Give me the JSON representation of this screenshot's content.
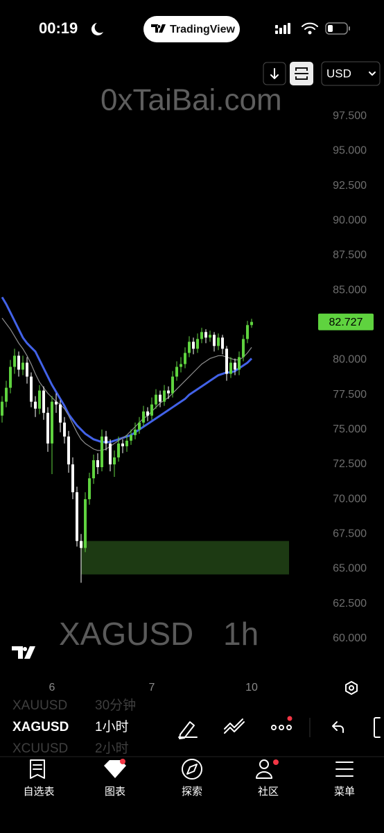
{
  "status_bar": {
    "time": "00:19",
    "app": "TradingView"
  },
  "toolbar": {
    "currency": "USD"
  },
  "watermark": {
    "site": "0xTaiBai.com",
    "symbol": "XAGUSD",
    "interval": "1h"
  },
  "chart_data": {
    "type": "candlestick",
    "categories": [
      null,
      null,
      null,
      null,
      null,
      null,
      null,
      null,
      null,
      null,
      null,
      null,
      "6",
      null,
      null,
      null,
      null,
      null,
      null,
      null,
      null,
      null,
      null,
      null,
      null,
      null,
      null,
      null,
      null,
      null,
      null,
      null,
      null,
      null,
      null,
      null,
      "7",
      null,
      null,
      null,
      null,
      null,
      null,
      null,
      null,
      null,
      null,
      null,
      null,
      null,
      null,
      null,
      null,
      null,
      null,
      null,
      null,
      null,
      null,
      null,
      "10"
    ],
    "open": [
      76.0,
      77.0,
      78.0,
      79.5,
      80.3,
      79.3,
      79.8,
      78.8,
      77.0,
      76.5,
      77.8,
      76.2,
      74.0,
      77.0,
      76.8,
      75.5,
      74.5,
      72.5,
      70.5,
      67.0,
      66.5,
      70.0,
      71.5,
      72.8,
      72.3,
      74.5,
      74.0,
      72.5,
      73.0,
      74.0,
      73.8,
      74.2,
      74.6,
      75.0,
      75.5,
      76.3,
      76.0,
      76.8,
      77.5,
      77.0,
      77.8,
      77.6,
      78.8,
      79.5,
      79.7,
      80.5,
      81.3,
      80.8,
      81.5,
      82.0,
      81.6,
      81.8,
      81.0,
      81.6,
      80.8,
      79.0,
      79.8,
      79.3,
      80.2,
      81.5,
      82.5
    ],
    "high": [
      77.4,
      78.5,
      80.0,
      80.8,
      80.6,
      80.3,
      80.2,
      79.1,
      77.4,
      78.2,
      78.1,
      76.6,
      77.4,
      77.6,
      77.1,
      75.9,
      74.9,
      73.0,
      70.9,
      67.5,
      70.5,
      71.9,
      73.2,
      73.3,
      75.0,
      74.9,
      74.3,
      73.5,
      74.5,
      74.3,
      74.6,
      75.0,
      75.5,
      75.9,
      76.7,
      76.6,
      77.3,
      77.9,
      77.8,
      78.2,
      78.1,
      79.2,
      79.9,
      80.2,
      80.9,
      81.7,
      81.6,
      81.9,
      82.3,
      82.2,
      82.1,
      82.0,
      81.9,
      81.8,
      81.0,
      80.2,
      80.1,
      80.6,
      81.8,
      82.8,
      82.95
    ],
    "low": [
      75.5,
      76.6,
      77.6,
      79.0,
      78.8,
      78.9,
      78.3,
      76.6,
      75.9,
      76.1,
      75.7,
      73.4,
      71.8,
      76.2,
      74.8,
      74.0,
      71.9,
      70.0,
      66.6,
      64.0,
      66.2,
      69.6,
      71.1,
      71.8,
      72.0,
      73.5,
      72.0,
      71.6,
      72.7,
      73.3,
      73.4,
      73.9,
      74.3,
      74.7,
      75.2,
      75.6,
      75.7,
      76.5,
      76.6,
      76.7,
      77.2,
      77.3,
      78.5,
      79.1,
      79.4,
      80.2,
      80.4,
      80.5,
      81.2,
      81.2,
      81.3,
      80.6,
      80.7,
      80.4,
      78.5,
      78.7,
      78.9,
      78.9,
      79.9,
      81.2,
      82.3
    ],
    "close": [
      77.0,
      78.0,
      79.5,
      80.3,
      79.3,
      79.8,
      78.8,
      77.0,
      76.5,
      77.8,
      76.2,
      74.0,
      77.0,
      76.8,
      75.5,
      74.5,
      72.5,
      70.5,
      67.0,
      66.5,
      70.0,
      71.5,
      72.8,
      72.3,
      74.5,
      74.0,
      72.5,
      73.0,
      74.0,
      73.8,
      74.2,
      74.6,
      75.0,
      75.5,
      76.3,
      76.0,
      76.8,
      77.5,
      77.0,
      77.8,
      77.6,
      78.8,
      79.5,
      79.7,
      80.5,
      81.3,
      80.8,
      81.5,
      82.0,
      81.6,
      81.8,
      81.0,
      81.6,
      80.8,
      79.0,
      79.8,
      79.3,
      80.2,
      81.5,
      82.5,
      82.727
    ],
    "up_color": "#5fd33f",
    "down_color": "#ffffff",
    "overlays": [
      {
        "color": "#4262e8",
        "values": [
          84.5,
          84.0,
          83.4,
          82.8,
          82.2,
          81.6,
          81.2,
          80.9,
          80.6,
          80.0,
          79.4,
          78.8,
          78.2,
          77.7,
          77.2,
          76.7,
          76.1,
          75.7,
          75.3,
          75.0,
          74.7,
          74.5,
          74.3,
          74.2,
          74.1,
          74.1,
          74.1,
          74.2,
          74.3,
          74.4,
          74.5,
          74.6,
          74.8,
          75.0,
          75.2,
          75.4,
          75.6,
          75.8,
          76.0,
          76.2,
          76.4,
          76.6,
          76.8,
          77.0,
          77.2,
          77.5,
          77.7,
          77.9,
          78.1,
          78.3,
          78.5,
          78.7,
          78.9,
          79.0,
          79.1,
          79.1,
          79.2,
          79.4,
          79.6,
          79.8,
          80.1
        ]
      },
      {
        "color": "#8e8e8e",
        "values": [
          83.0,
          82.6,
          82.2,
          81.7,
          81.2,
          80.8,
          80.3,
          79.7,
          79.0,
          78.4,
          78.0,
          77.6,
          77.3,
          77.0,
          76.8,
          76.5,
          76.0,
          75.4,
          74.8,
          74.3,
          74.0,
          73.8,
          73.6,
          73.5,
          73.5,
          73.6,
          73.8,
          74.0,
          74.2,
          74.4,
          74.6,
          74.9,
          75.2,
          75.5,
          75.8,
          76.0,
          76.3,
          76.6,
          76.9,
          77.1,
          77.3,
          77.6,
          77.9,
          78.2,
          78.5,
          78.8,
          79.1,
          79.4,
          79.7,
          79.9,
          80.1,
          80.2,
          80.3,
          80.3,
          80.2,
          80.1,
          80.0,
          80.0,
          80.2,
          80.5,
          80.9
        ]
      }
    ],
    "zone": {
      "x": [
        19,
        69
      ],
      "y": [
        64.6,
        67.0
      ],
      "color": "#1d3a13"
    },
    "last_price_color": "#5fd33f",
    "ylim": [
      57.5,
      101.1
    ],
    "yticks": [
      {
        "value": 97.5,
        "label": "97.500"
      },
      {
        "value": 95,
        "label": "95.000"
      },
      {
        "value": 92.5,
        "label": "92.500"
      },
      {
        "value": 90,
        "label": "90.000"
      },
      {
        "value": 87.5,
        "label": "87.500"
      },
      {
        "value": 85,
        "label": "85.000"
      },
      {
        "value": 80,
        "label": "80.000"
      },
      {
        "value": 77.5,
        "label": "77.500"
      },
      {
        "value": 75,
        "label": "75.000"
      },
      {
        "value": 72.5,
        "label": "72.500"
      },
      {
        "value": 70,
        "label": "70.000"
      },
      {
        "value": 67.5,
        "label": "67.500"
      },
      {
        "value": 65,
        "label": "65.000"
      },
      {
        "value": 62.5,
        "label": "62.500"
      },
      {
        "value": 60,
        "label": "60.000"
      }
    ],
    "grid": false
  },
  "symbols": [
    {
      "symbol": "XAUUSD",
      "interval": "30分钟"
    },
    {
      "symbol": "XAGUSD",
      "interval": "1小时"
    },
    {
      "symbol": "XCUUSD",
      "interval": "2小时"
    }
  ],
  "nav": [
    "自选表",
    "图表",
    "探索",
    "社区",
    "菜单"
  ]
}
